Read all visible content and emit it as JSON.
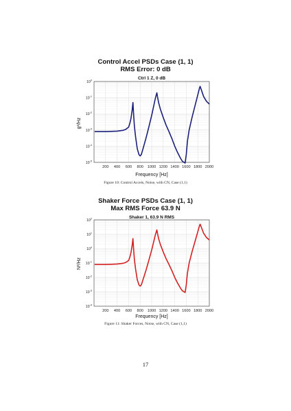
{
  "figures": [
    {
      "title_line1": "Control Accel PSDs Case (1, 1)",
      "title_line2": "RMS Error: 0 dB",
      "panel_title": "Ctrl 1 Z, 0 dB",
      "xlabel": "Frequency [Hz]",
      "ylabel": "g²/Hz",
      "caption": "Figure 10: Control Accels, Noise, with CN, Case (1,1)"
    },
    {
      "title_line1": "Shaker Force PSDs Case (1, 1)",
      "title_line2": "Max RMS Force 63.9 N",
      "panel_title": "Shaker 1, 63.9 N RMS",
      "xlabel": "Frequency [Hz]",
      "ylabel": "N²/Hz",
      "caption": "Figure 11: Shaker Forces, Noise, with CN, Case (1,1)"
    }
  ],
  "page_number": "17",
  "chart_data": [
    {
      "type": "line",
      "title": "Ctrl 1 Z, 0 dB",
      "xlabel": "Frequency [Hz]",
      "ylabel": "g²/Hz",
      "xlim": [
        0,
        2000
      ],
      "ylim_log10": [
        -5,
        0
      ],
      "yscale": "log",
      "grid": true,
      "color": "#1a1f7a",
      "x_ticks": [
        200,
        400,
        600,
        800,
        1000,
        1200,
        1400,
        1600,
        1800,
        2000
      ],
      "y_tick_exponents": [
        -5,
        -4,
        -3,
        -2,
        -1,
        0
      ],
      "series": [
        {
          "x": [
            10,
            100,
            200,
            300,
            400,
            500,
            550,
            600,
            620,
            640,
            660,
            675,
            690,
            700,
            720,
            750,
            780,
            800,
            820,
            850,
            900,
            950,
            1000,
            1030,
            1060,
            1080,
            1090,
            1100,
            1120,
            1150,
            1200,
            1250,
            1300,
            1350,
            1400,
            1450,
            1500,
            1530,
            1560,
            1580,
            1600,
            1620,
            1650,
            1700,
            1750,
            1800,
            1830,
            1840,
            1850,
            1870,
            1900,
            1950,
            2000
          ],
          "y": [
            0.0008,
            0.0008,
            0.0008,
            0.00082,
            0.00085,
            0.00095,
            0.0011,
            0.0015,
            0.0025,
            0.005,
            0.015,
            0.05,
            0.006,
            0.0018,
            0.0004,
            7e-05,
            3e-05,
            2.5e-05,
            3e-05,
            7e-05,
            0.0003,
            0.0015,
            0.008,
            0.025,
            0.08,
            0.15,
            0.2,
            0.12,
            0.05,
            0.02,
            0.006,
            0.002,
            0.0008,
            0.0003,
            0.0001,
            4e-05,
            1.8e-05,
            1.2e-05,
            1e-05,
            9e-06,
            3e-05,
            0.0002,
            0.001,
            0.006,
            0.03,
            0.15,
            0.4,
            0.5,
            0.4,
            0.25,
            0.12,
            0.06,
            0.04
          ]
        }
      ]
    },
    {
      "type": "line",
      "title": "Shaker 1, 63.9 N RMS",
      "xlabel": "Frequency [Hz]",
      "ylabel": "N²/Hz",
      "xlim": [
        0,
        2000
      ],
      "ylim_log10": [
        -4,
        2
      ],
      "yscale": "log",
      "grid": true,
      "color": "#d42020",
      "x_ticks": [
        200,
        400,
        600,
        800,
        1000,
        1200,
        1400,
        1600,
        1800,
        2000
      ],
      "y_tick_exponents": [
        -4,
        -3,
        -2,
        -1,
        0,
        1,
        2
      ],
      "series": [
        {
          "x": [
            10,
            100,
            200,
            300,
            400,
            500,
            550,
            600,
            620,
            640,
            660,
            675,
            690,
            700,
            720,
            750,
            780,
            800,
            820,
            850,
            900,
            950,
            1000,
            1030,
            1060,
            1080,
            1090,
            1100,
            1120,
            1150,
            1200,
            1250,
            1300,
            1350,
            1400,
            1450,
            1500,
            1530,
            1560,
            1580,
            1600,
            1620,
            1650,
            1700,
            1750,
            1800,
            1830,
            1840,
            1850,
            1870,
            1900,
            1950,
            2000
          ],
          "y": [
            0.08,
            0.08,
            0.08,
            0.082,
            0.085,
            0.095,
            0.11,
            0.15,
            0.25,
            0.5,
            1.5,
            5,
            0.6,
            0.18,
            0.04,
            0.007,
            0.003,
            0.0025,
            0.003,
            0.007,
            0.03,
            0.15,
            0.8,
            2.5,
            8,
            15,
            20,
            12,
            5,
            2,
            0.6,
            0.2,
            0.08,
            0.03,
            0.01,
            0.004,
            0.0018,
            0.0012,
            0.001,
            0.0009,
            0.003,
            0.02,
            0.1,
            0.6,
            3,
            15,
            40,
            50,
            40,
            25,
            12,
            6,
            4
          ]
        }
      ]
    }
  ]
}
